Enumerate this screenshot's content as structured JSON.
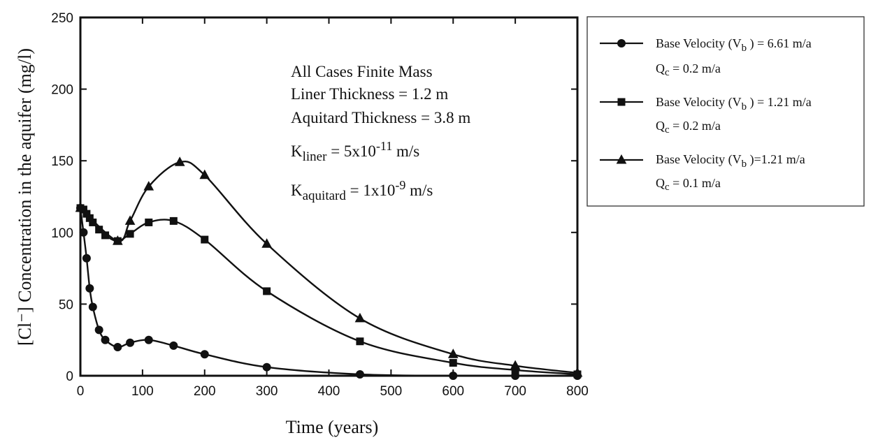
{
  "chart_data": {
    "type": "line",
    "xlabel": "Time (years)",
    "ylabel": "[Cl⁻] Concentration in the aquifer (mg/l)",
    "xlim": [
      0,
      800
    ],
    "ylim": [
      0,
      250
    ],
    "x_ticks": [
      "0",
      "100",
      "200",
      "300",
      "400",
      "500",
      "600",
      "700",
      "800"
    ],
    "y_ticks": [
      "0",
      "50",
      "100",
      "150",
      "200",
      "250"
    ],
    "grid": false,
    "legend_position": "right, outside plot",
    "annotations": {
      "line1": "All Cases Finite Mass",
      "line2": "Liner Thickness = 1.2 m",
      "line3": "Aquitard Thickness = 3.8 m",
      "k_liner_prefix": "K",
      "k_liner_sub": "liner",
      "k_liner_eq": " = 5x10",
      "k_liner_exp": "-11",
      "k_liner_unit": " m/s",
      "k_aquitard_prefix": "K",
      "k_aquitard_sub": "aquitard",
      "k_aquitard_eq": " = 1x10",
      "k_aquitard_exp": "-9",
      "k_aquitard_unit": " m/s"
    },
    "series": [
      {
        "marker": "circle",
        "legend_main": "Base Velocity (V",
        "legend_sub": "b",
        "legend_rest": " ) = 6.61 m/a",
        "legend_q": "Q",
        "legend_q_sub": "c",
        "legend_q_rest": " = 0.2 m/a",
        "x": [
          0,
          5,
          10,
          15,
          20,
          30,
          40,
          60,
          80,
          110,
          150,
          200,
          300,
          450,
          600,
          700,
          800
        ],
        "y": [
          117,
          100,
          82,
          61,
          48,
          32,
          25,
          20,
          23,
          25,
          21,
          15,
          6,
          1,
          0,
          0,
          0
        ]
      },
      {
        "marker": "square",
        "legend_main": "Base Velocity (V",
        "legend_sub": "b",
        "legend_rest": " ) = 1.21 m/a",
        "legend_q": "Q",
        "legend_q_sub": "c",
        "legend_q_rest": " = 0.2 m/a",
        "x": [
          0,
          5,
          10,
          15,
          20,
          30,
          40,
          60,
          80,
          110,
          150,
          200,
          300,
          450,
          600,
          700,
          800
        ],
        "y": [
          117,
          116,
          113,
          110,
          107,
          102,
          98,
          94,
          99,
          107,
          108,
          95,
          59,
          24,
          9,
          4,
          1
        ]
      },
      {
        "marker": "triangle",
        "legend_main": "Base Velocity (V",
        "legend_sub": "b",
        "legend_rest": " )=1.21 m/a",
        "legend_q": "Q",
        "legend_q_sub": "c",
        "legend_q_rest": " = 0.1 m/a",
        "x": [
          0,
          60,
          80,
          110,
          160,
          200,
          300,
          450,
          600,
          700,
          800
        ],
        "y": [
          117,
          94,
          108,
          132,
          149,
          140,
          92,
          40,
          15,
          7,
          2
        ]
      }
    ]
  }
}
